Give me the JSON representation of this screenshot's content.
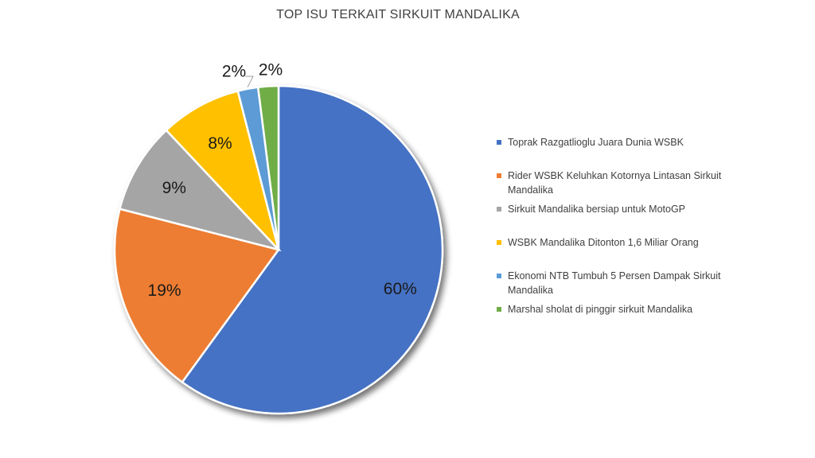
{
  "chart_data": {
    "type": "pie",
    "title": "TOP ISU TERKAIT SIRKUIT MANDALIKA",
    "legend_position": "right",
    "slices": [
      {
        "name": "Toprak Razgatlioglu Juara Dunia WSBK",
        "value": 60,
        "label": "60%",
        "color": "#4472C4"
      },
      {
        "name": "Rider WSBK Keluhkan Kotornya Lintasan Sirkuit Mandalika",
        "value": 19,
        "label": "19%",
        "color": "#ED7D31"
      },
      {
        "name": "Sirkuit Mandalika bersiap untuk MotoGP",
        "value": 9,
        "label": "9%",
        "color": "#A5A5A5"
      },
      {
        "name": "WSBK Mandalika Ditonton 1,6 Miliar Orang",
        "value": 8,
        "label": "8%",
        "color": "#FFC000"
      },
      {
        "name": "Ekonomi NTB Tumbuh 5 Persen Dampak Sirkuit Mandalika",
        "value": 2,
        "label": "2%",
        "color": "#5B9BD5"
      },
      {
        "name": "Marshal sholat di pinggir sirkuit Mandalika",
        "value": 2,
        "label": "2%",
        "color": "#70AD47"
      }
    ]
  }
}
